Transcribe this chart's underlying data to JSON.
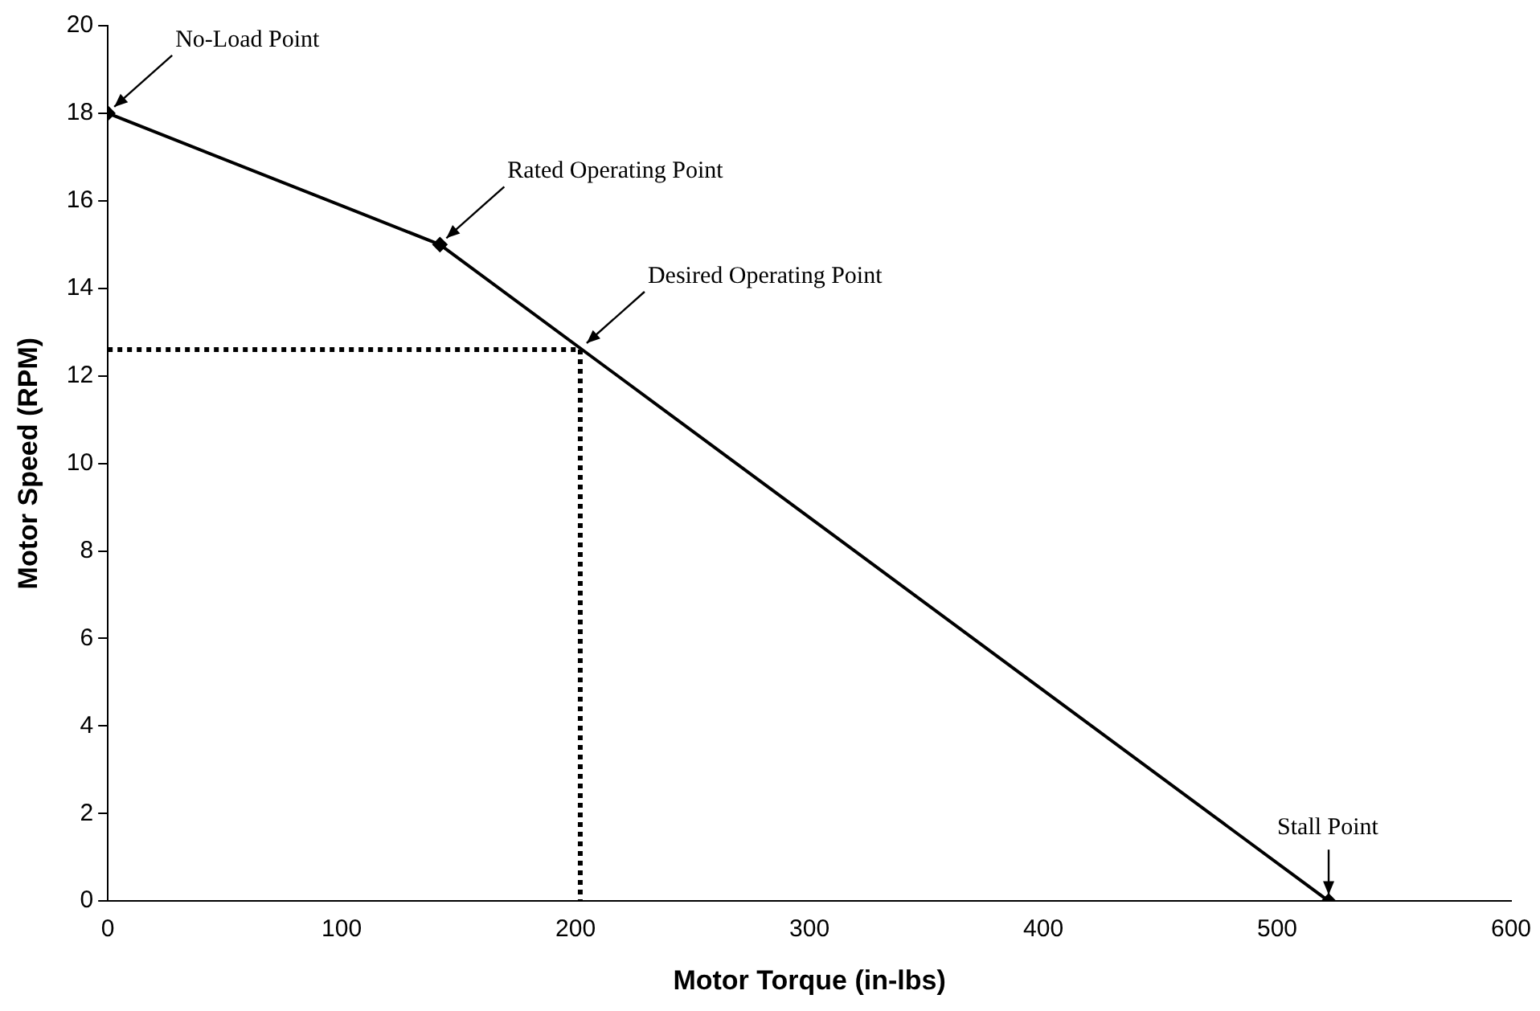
{
  "chart_data": {
    "type": "line",
    "xlabel": "Motor Torque (in-lbs)",
    "ylabel": "Motor Speed (RPM)",
    "xlim": [
      0,
      600
    ],
    "xticks": [
      0,
      100,
      200,
      300,
      400,
      500,
      600
    ],
    "ylim": [
      0,
      20
    ],
    "yticks": [
      0,
      2,
      4,
      6,
      8,
      10,
      12,
      14,
      16,
      18,
      20
    ],
    "grid": false,
    "legend": false,
    "series": [
      {
        "x": [
          0,
          142,
          522
        ],
        "values": [
          18,
          15,
          0
        ],
        "color": "#000000",
        "marker": "diamond",
        "line_style": "solid"
      },
      {
        "x": [
          0,
          202
        ],
        "values": [
          12.6,
          12.6
        ],
        "color": "#000000",
        "marker": "none",
        "line_style": "dotted"
      },
      {
        "x": [
          202,
          202
        ],
        "values": [
          12.6,
          0
        ],
        "color": "#000000",
        "marker": "none",
        "line_style": "dotted"
      }
    ],
    "annotations": [
      {
        "text": "No-Load Point",
        "x": 0,
        "y": 18
      },
      {
        "text": "Rated Operating Point",
        "x": 142,
        "y": 15
      },
      {
        "text": "Desired Operating Point",
        "x": 202,
        "y": 12.6
      },
      {
        "text": "Stall Point",
        "x": 522,
        "y": 0
      }
    ]
  }
}
